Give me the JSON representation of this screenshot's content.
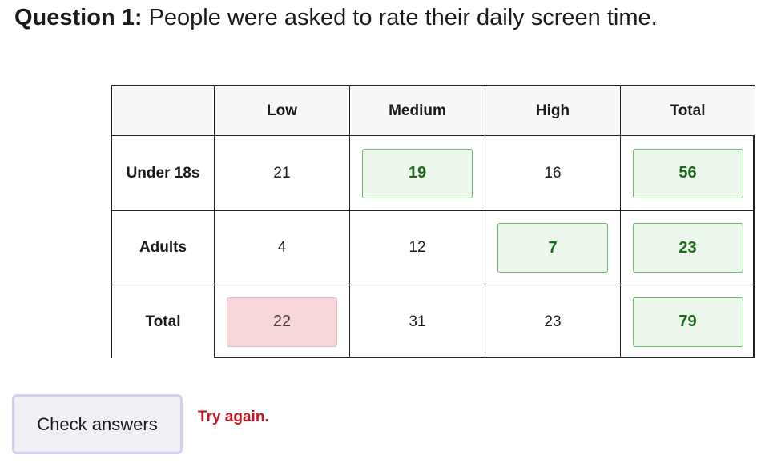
{
  "question": {
    "label": "Question 1:",
    "text": "People were asked to rate their daily screen time."
  },
  "table": {
    "columns": [
      "Low",
      "Medium",
      "High",
      "Total"
    ],
    "rows": [
      {
        "label": "Under 18s",
        "cells": [
          "21",
          "19",
          "16",
          "56"
        ],
        "states": [
          "given",
          "correct",
          "given",
          "correct"
        ]
      },
      {
        "label": "Adults",
        "cells": [
          "4",
          "12",
          "7",
          "23"
        ],
        "states": [
          "given",
          "given",
          "correct",
          "correct"
        ]
      },
      {
        "label": "Total",
        "cells": [
          "22",
          "31",
          "23",
          "79"
        ],
        "states": [
          "incorrect",
          "given",
          "given",
          "correct"
        ]
      }
    ]
  },
  "button": "Check answers",
  "feedback": "Try again."
}
